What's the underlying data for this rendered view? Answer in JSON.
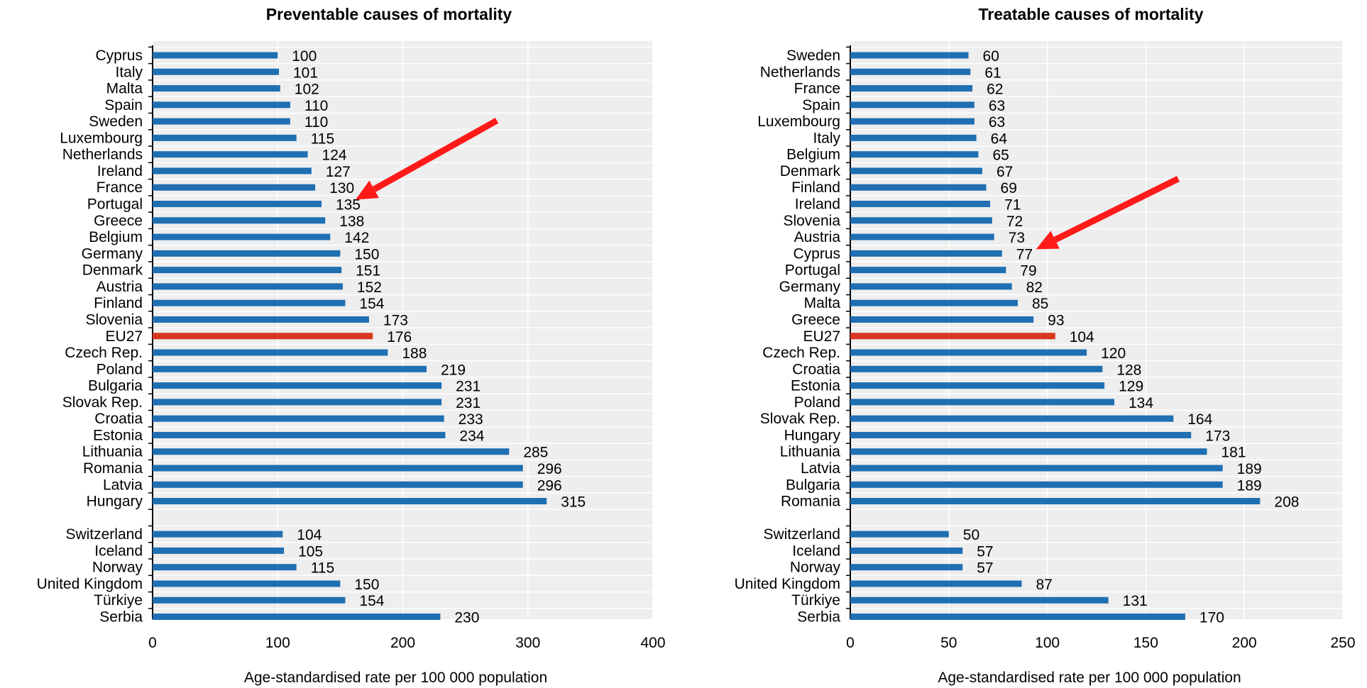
{
  "colors": {
    "bar": "#1f6fb2",
    "highlight_bar": "#d9361f",
    "arrow": "#ff1a1a",
    "plot_background": "#eeeeee",
    "grid": "#ffffff"
  },
  "chart_data": [
    {
      "type": "bar",
      "orientation": "horizontal",
      "title": "Preventable causes of mortality",
      "xlabel": "Age-standardised rate per 100 000 population",
      "xlim": [
        0,
        400
      ],
      "xticks": [
        0,
        100,
        200,
        300,
        400
      ],
      "grid": true,
      "highlight": "EU27",
      "arrow_points_to": "Portugal",
      "groups": [
        {
          "categories": [
            "Cyprus",
            "Italy",
            "Malta",
            "Spain",
            "Sweden",
            "Luxembourg",
            "Netherlands",
            "Ireland",
            "France",
            "Portugal",
            "Greece",
            "Belgium",
            "Germany",
            "Denmark",
            "Austria",
            "Finland",
            "Slovenia",
            "EU27",
            "Czech Rep.",
            "Poland",
            "Bulgaria",
            "Slovak Rep.",
            "Croatia",
            "Estonia",
            "Lithuania",
            "Romania",
            "Latvia",
            "Hungary"
          ],
          "values": [
            100,
            101,
            102,
            110,
            110,
            115,
            124,
            127,
            130,
            135,
            138,
            142,
            150,
            151,
            152,
            154,
            173,
            176,
            188,
            219,
            231,
            231,
            233,
            234,
            285,
            296,
            296,
            315
          ]
        },
        {
          "categories": [
            "Switzerland",
            "Iceland",
            "Norway",
            "United Kingdom",
            "Türkiye",
            "Serbia"
          ],
          "values": [
            104,
            105,
            115,
            150,
            154,
            230
          ]
        }
      ]
    },
    {
      "type": "bar",
      "orientation": "horizontal",
      "title": "Treatable causes of mortality",
      "xlabel": "Age-standardised rate per 100 000 population",
      "xlim": [
        0,
        250
      ],
      "xticks": [
        0,
        50,
        100,
        150,
        200,
        250
      ],
      "grid": true,
      "highlight": "EU27",
      "arrow_points_to": "Cyprus",
      "groups": [
        {
          "categories": [
            "Sweden",
            "Netherlands",
            "France",
            "Spain",
            "Luxembourg",
            "Italy",
            "Belgium",
            "Denmark",
            "Finland",
            "Ireland",
            "Slovenia",
            "Austria",
            "Cyprus",
            "Portugal",
            "Germany",
            "Malta",
            "Greece",
            "EU27",
            "Czech Rep.",
            "Croatia",
            "Estonia",
            "Poland",
            "Slovak Rep.",
            "Hungary",
            "Lithuania",
            "Latvia",
            "Bulgaria",
            "Romania"
          ],
          "values": [
            60,
            61,
            62,
            63,
            63,
            64,
            65,
            67,
            69,
            71,
            72,
            73,
            77,
            79,
            82,
            85,
            93,
            104,
            120,
            128,
            129,
            134,
            164,
            173,
            181,
            189,
            189,
            208
          ]
        },
        {
          "categories": [
            "Switzerland",
            "Iceland",
            "Norway",
            "United Kingdom",
            "Türkiye",
            "Serbia"
          ],
          "values": [
            50,
            57,
            57,
            87,
            131,
            170
          ]
        }
      ]
    }
  ]
}
